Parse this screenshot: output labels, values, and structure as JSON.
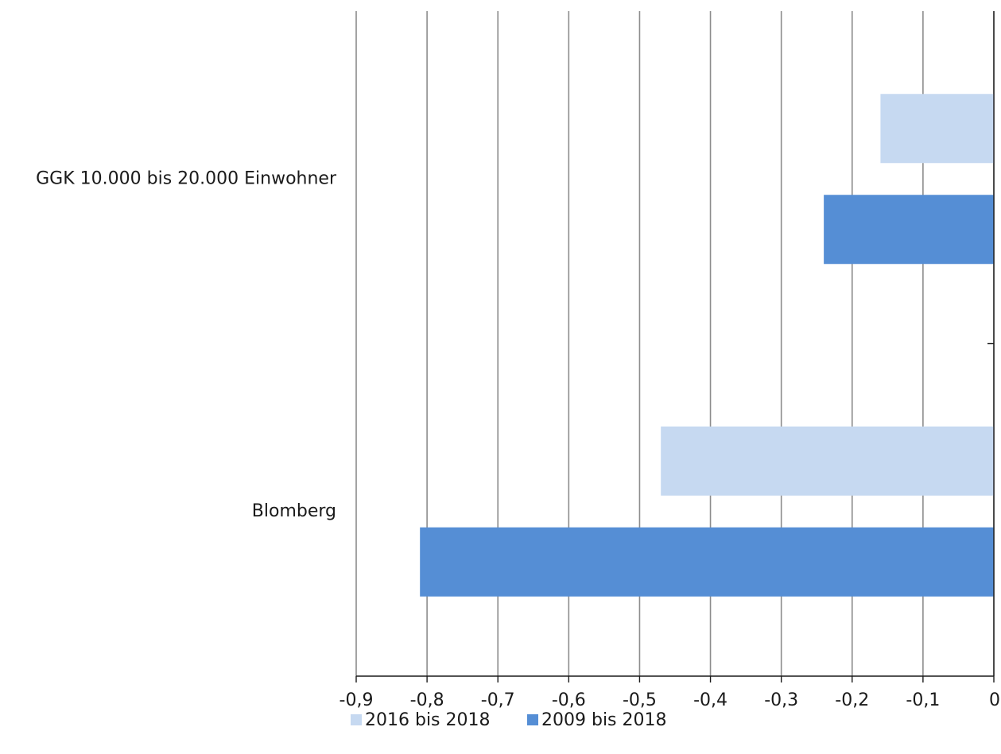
{
  "chart_data": {
    "type": "bar",
    "orientation": "horizontal",
    "categories": [
      "GGK 10.000 bis 20.000 Einwohner",
      "Blomberg"
    ],
    "series": [
      {
        "name": "2016 bis 2018",
        "color": "#c6d9f1",
        "values": [
          -0.16,
          -0.47
        ]
      },
      {
        "name": "2009 bis 2018",
        "color": "#558ed5",
        "values": [
          -0.24,
          -0.81
        ]
      }
    ],
    "xlim": [
      -0.9,
      0
    ],
    "x_ticks": [
      -0.9,
      -0.8,
      -0.7,
      -0.6,
      -0.5,
      -0.4,
      -0.3,
      -0.2,
      -0.1,
      0
    ],
    "x_tick_labels": [
      "-0,9",
      "-0,8",
      "-0,7",
      "-0,6",
      "-0,5",
      "-0,4",
      "-0,3",
      "-0,2",
      "-0,1",
      "0"
    ],
    "grid": true,
    "legend_position": "bottom",
    "title": "",
    "xlabel": "",
    "ylabel": ""
  }
}
